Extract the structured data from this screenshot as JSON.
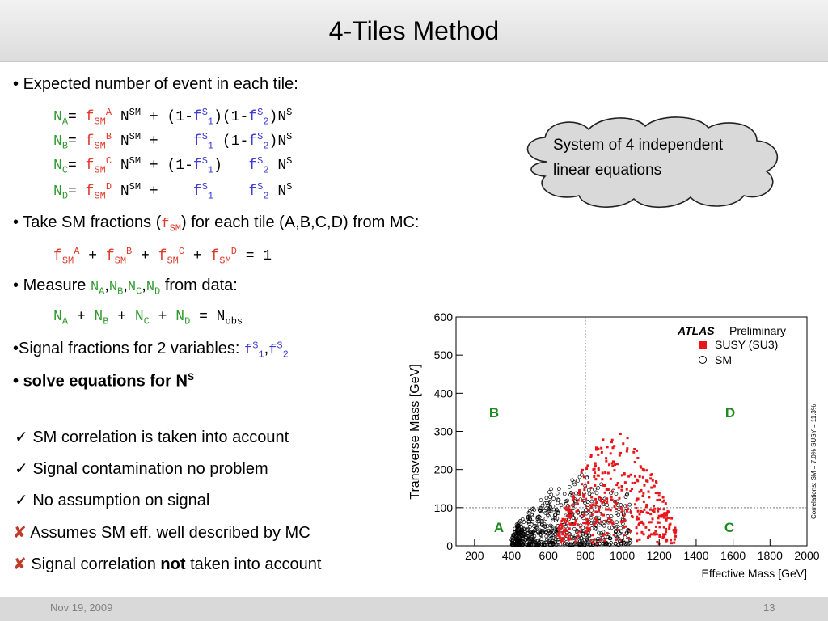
{
  "title": "4-Tiles Method",
  "footer": {
    "date": "Nov 19, 2009",
    "page": "13"
  },
  "bullets": {
    "b1": "Expected number of event in each tile:",
    "b2_pre": "Take SM fractions (",
    "b2_post": ") for each tile (A,B,C,D) from MC:",
    "b3_pre": "Measure",
    "b3_post": "from data:",
    "b4": "Signal fractions for 2 variables:",
    "b5": "solve equations for N"
  },
  "checks": [
    "SM correlation is taken into account",
    "Signal contamination no problem",
    "No assumption on signal"
  ],
  "crosses": {
    "c1": "Assumes SM eff. well described by MC",
    "c2_pre": "Signal correlation",
    "c2_bold": "not",
    "c2_post": "taken into account"
  },
  "cloud": {
    "line1": "System of 4 independent",
    "line2": "linear equations"
  },
  "chart_data": {
    "type": "scatter",
    "xlabel": "Effective Mass [GeV]",
    "ylabel": "Transverse Mass [GeV]",
    "xlim": [
      100,
      2000
    ],
    "ylim": [
      0,
      600
    ],
    "xticks": [
      200,
      400,
      600,
      800,
      1000,
      1200,
      1400,
      1600,
      1800,
      2000
    ],
    "yticks": [
      0,
      100,
      200,
      300,
      400,
      500,
      600
    ],
    "cut_lines": {
      "x": 800,
      "y": 100
    },
    "regions": [
      "A",
      "B",
      "C",
      "D"
    ],
    "brand": "ATLAS",
    "brand_note": "Preliminary",
    "series": [
      {
        "name": "SUSY (SU3)",
        "marker": "filled-square",
        "color": "#e8161b"
      },
      {
        "name": "SM",
        "marker": "open-circle",
        "color": "#000000"
      }
    ],
    "side_note": "Correlations: SM = 7.0% SUSY = 11.3%",
    "legend": "top-right"
  }
}
